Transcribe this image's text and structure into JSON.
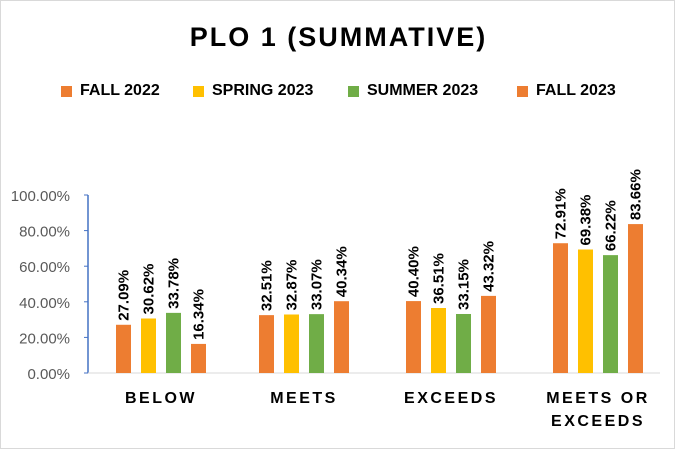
{
  "chart_data": {
    "type": "bar",
    "title": "PLO 1 (SUMMATIVE)",
    "categories": [
      "BELOW",
      "MEETS",
      "EXCEEDS",
      "MEETS OR EXCEEDS"
    ],
    "series": [
      {
        "name": "FALL 2022",
        "color": "#ED7D31",
        "values": [
          27.09,
          32.51,
          40.4,
          72.91
        ],
        "labels": [
          "27.09%",
          "32.51%",
          "40.40%",
          "72.91%"
        ]
      },
      {
        "name": "SPRING 2023",
        "color": "#FFC000",
        "values": [
          30.62,
          32.87,
          36.51,
          69.38
        ],
        "labels": [
          "30.62%",
          "32.87%",
          "36.51%",
          "69.38%"
        ]
      },
      {
        "name": "SUMMER 2023",
        "color": "#70AD47",
        "values": [
          33.78,
          33.07,
          33.15,
          66.22
        ],
        "labels": [
          "33.78%",
          "33.07%",
          "33.15%",
          "66.22%"
        ]
      },
      {
        "name": "FALL 2023",
        "color": "#ED7D31",
        "values": [
          16.34,
          40.34,
          43.32,
          83.66
        ],
        "labels": [
          "16.34%",
          "40.34%",
          "43.32%",
          "83.66%"
        ]
      }
    ],
    "ylim": [
      0,
      100
    ],
    "yticks": [
      "0.00%",
      "20.00%",
      "40.00%",
      "60.00%",
      "80.00%",
      "100.00%"
    ],
    "xlabel": "",
    "ylabel": "",
    "grid": false,
    "legend_position": "top"
  }
}
